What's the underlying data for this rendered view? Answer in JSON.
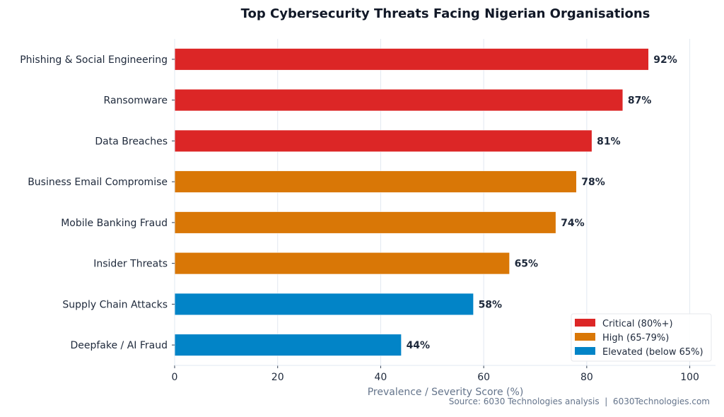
{
  "chart_data": {
    "type": "bar",
    "orientation": "horizontal",
    "title": "Top Cybersecurity Threats Facing Nigerian Organisations",
    "xlabel": "Prevalence / Severity Score (%)",
    "ylabel": "",
    "xlim": [
      0,
      105
    ],
    "xticks": [
      0,
      20,
      40,
      60,
      80,
      100
    ],
    "grid": "vertical",
    "categories": [
      "Phishing & Social Engineering",
      "Ransomware",
      "Data Breaches",
      "Business Email Compromise",
      "Mobile Banking Fraud",
      "Insider Threats",
      "Supply Chain Attacks",
      "Deepfake / AI Fraud"
    ],
    "values": [
      92,
      87,
      81,
      78,
      74,
      65,
      58,
      44
    ],
    "data_labels": [
      "92%",
      "87%",
      "81%",
      "78%",
      "74%",
      "65%",
      "58%",
      "44%"
    ],
    "tiers": [
      "critical",
      "critical",
      "critical",
      "high",
      "high",
      "high",
      "elevated",
      "elevated"
    ],
    "legend": {
      "placement": "lower-right",
      "entries": [
        {
          "key": "critical",
          "label": "Critical (80%+)",
          "color": "#dc2626"
        },
        {
          "key": "high",
          "label": "High (65-79%)",
          "color": "#d97706"
        },
        {
          "key": "elevated",
          "label": "Elevated (below 65%)",
          "color": "#0284c7"
        }
      ]
    },
    "source": "Source: 6030 Technologies analysis  |  6030Technologies.com"
  }
}
